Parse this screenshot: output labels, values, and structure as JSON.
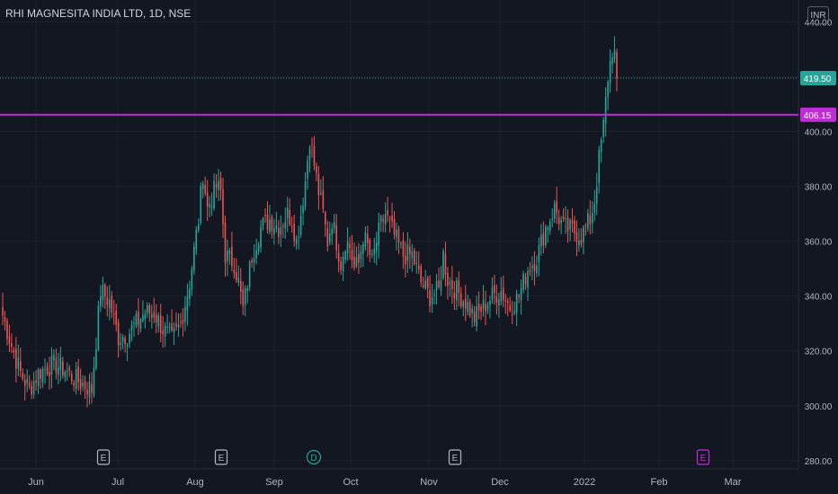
{
  "window": {
    "title": "RHI MAGNESITA INDIA LTD, 1D, NSE",
    "currency": "INR"
  },
  "colors": {
    "background": "#131722",
    "grid": "#1e222d",
    "up": "#26a69a",
    "down": "#ef5350",
    "resistance": "#c02cd6",
    "last_price": "#26a69a",
    "axis_text": "#b2b5be"
  },
  "chart_data": {
    "type": "candlestick",
    "title": "RHI MAGNESITA INDIA LTD, 1D, NSE",
    "xlabel": "",
    "ylabel": "",
    "ylim": [
      277,
      448
    ],
    "y_ticks": [
      "440.00",
      "420.00",
      "400.00",
      "380.00",
      "360.00",
      "340.00",
      "320.00",
      "300.00",
      "280.00"
    ],
    "x_ticks": [
      "Jun",
      "Jul",
      "Aug",
      "Sep",
      "Oct",
      "Nov",
      "Dec",
      "2022",
      "Feb",
      "Mar"
    ],
    "last_price": {
      "label": "419.50",
      "value": 419.5
    },
    "horizontal_line": {
      "label": "406.15",
      "value": 406.15
    },
    "events": [
      {
        "label": "E",
        "type": "earnings",
        "near": "Jun"
      },
      {
        "label": "E",
        "type": "earnings",
        "near": "Aug"
      },
      {
        "label": "D",
        "type": "dividend",
        "near": "Sep"
      },
      {
        "label": "E",
        "type": "earnings",
        "near": "Nov"
      },
      {
        "label": "E",
        "type": "earnings-upcoming",
        "near": "Feb"
      }
    ],
    "series_anchors": [
      [
        0,
        333
      ],
      [
        4,
        322
      ],
      [
        8,
        312
      ],
      [
        12,
        306
      ],
      [
        16,
        312
      ],
      [
        20,
        314
      ],
      [
        24,
        315
      ],
      [
        28,
        313
      ],
      [
        32,
        310
      ],
      [
        36,
        308
      ],
      [
        40,
        306
      ],
      [
        42,
        324
      ],
      [
        44,
        342
      ],
      [
        48,
        338
      ],
      [
        52,
        325
      ],
      [
        56,
        326
      ],
      [
        60,
        330
      ],
      [
        64,
        334
      ],
      [
        68,
        334
      ],
      [
        72,
        328
      ],
      [
        76,
        324
      ],
      [
        80,
        330
      ],
      [
        84,
        345
      ],
      [
        88,
        368
      ],
      [
        90,
        385
      ],
      [
        92,
        372
      ],
      [
        96,
        380
      ],
      [
        98,
        378
      ],
      [
        100,
        355
      ],
      [
        104,
        352
      ],
      [
        106,
        345
      ],
      [
        108,
        335
      ],
      [
        110,
        345
      ],
      [
        112,
        355
      ],
      [
        116,
        365
      ],
      [
        120,
        368
      ],
      [
        124,
        365
      ],
      [
        128,
        370
      ],
      [
        130,
        368
      ],
      [
        132,
        360
      ],
      [
        134,
        370
      ],
      [
        136,
        382
      ],
      [
        138,
        398
      ],
      [
        140,
        388
      ],
      [
        142,
        378
      ],
      [
        144,
        370
      ],
      [
        146,
        360
      ],
      [
        148,
        368
      ],
      [
        150,
        360
      ],
      [
        152,
        352
      ],
      [
        154,
        360
      ],
      [
        156,
        358
      ],
      [
        158,
        350
      ],
      [
        160,
        352
      ],
      [
        162,
        362
      ],
      [
        164,
        358
      ],
      [
        166,
        352
      ],
      [
        168,
        360
      ],
      [
        170,
        366
      ],
      [
        172,
        370
      ],
      [
        176,
        362
      ],
      [
        180,
        355
      ],
      [
        184,
        355
      ],
      [
        188,
        345
      ],
      [
        192,
        340
      ],
      [
        196,
        342
      ],
      [
        198,
        355
      ],
      [
        200,
        346
      ],
      [
        204,
        342
      ],
      [
        208,
        338
      ],
      [
        212,
        332
      ],
      [
        216,
        336
      ],
      [
        220,
        340
      ],
      [
        224,
        342
      ],
      [
        228,
        336
      ],
      [
        232,
        340
      ],
      [
        236,
        350
      ],
      [
        240,
        354
      ],
      [
        244,
        365
      ],
      [
        248,
        372
      ],
      [
        252,
        365
      ],
      [
        256,
        364
      ],
      [
        260,
        362
      ],
      [
        264,
        368
      ],
      [
        266,
        375
      ],
      [
        268,
        390
      ],
      [
        270,
        402
      ],
      [
        272,
        420
      ],
      [
        274,
        430
      ],
      [
        275,
        428
      ],
      [
        276,
        419.5
      ]
    ]
  }
}
